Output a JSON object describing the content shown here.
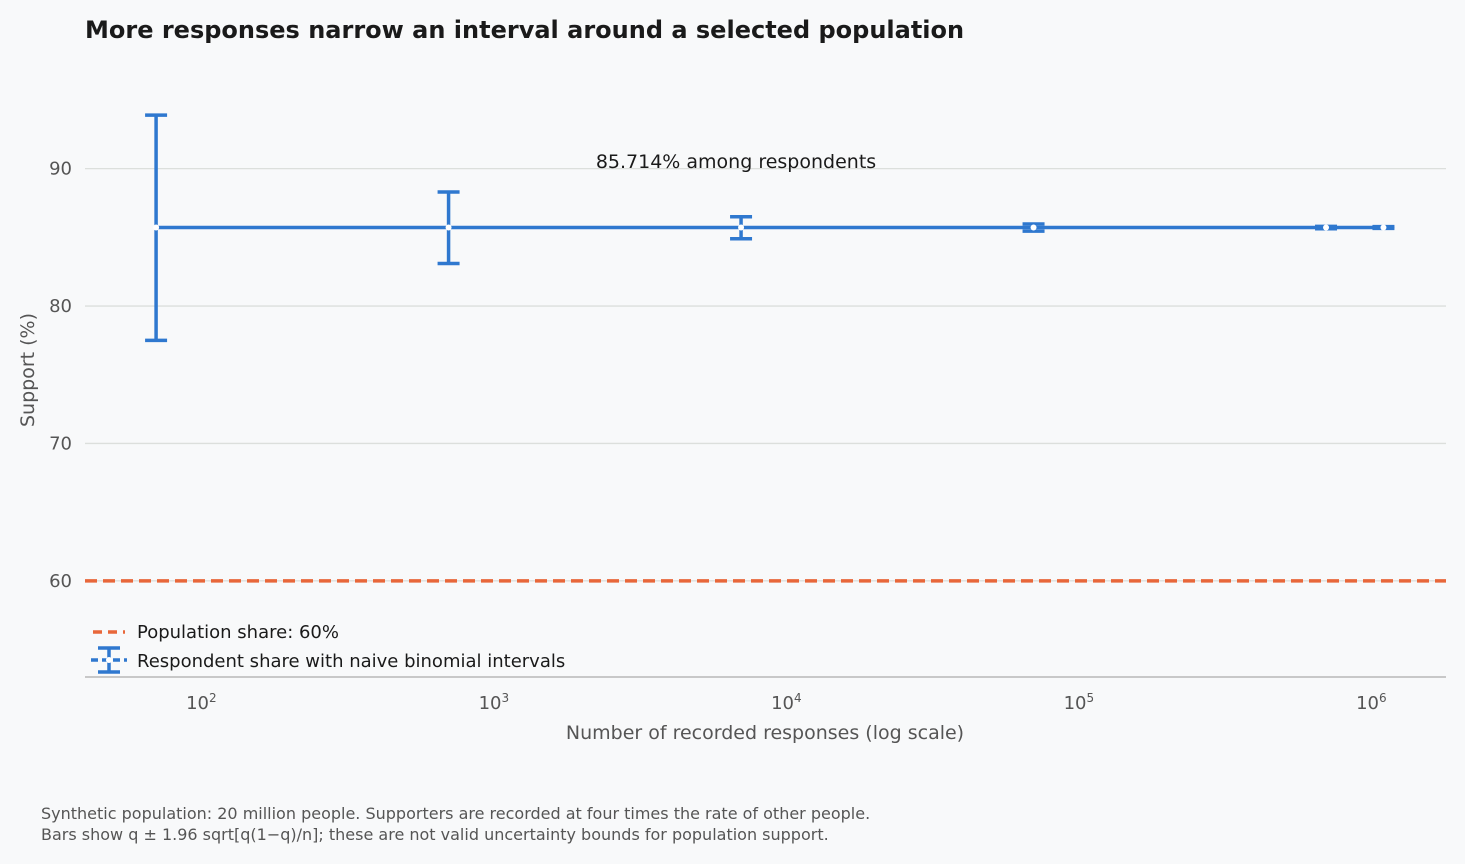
{
  "chart_data": {
    "type": "scatter",
    "title": "More responses narrow an interval around a selected population",
    "xlabel": "Number of recorded responses (log scale)",
    "ylabel": "Support (%)",
    "x_scale": "log",
    "xlim": [
      40,
      1800000
    ],
    "ylim": [
      53,
      99
    ],
    "x_ticks": [
      100,
      1000,
      10000,
      100000,
      1000000
    ],
    "y_ticks": [
      60,
      70,
      80,
      90
    ],
    "grid": "horizontal",
    "legend_position": "lower-left",
    "reference_line": {
      "name": "Population share: 60%",
      "y": 60,
      "color": "#e8673a",
      "style": "dashed"
    },
    "series": [
      {
        "name": "Respondent share with naive binomial intervals",
        "color": "#2f78cf",
        "x": [
          70,
          700,
          7000,
          70000,
          700000,
          1100000
        ],
        "y": [
          85.714,
          85.714,
          85.714,
          85.714,
          85.714,
          85.714
        ],
        "y_low": [
          77.5,
          83.1,
          84.9,
          85.45,
          85.63,
          85.65
        ],
        "y_high": [
          93.9,
          88.3,
          86.5,
          85.97,
          85.8,
          85.78
        ]
      }
    ],
    "annotation": {
      "text": "85.714% among respondents",
      "x": 7000,
      "y": 90.8
    }
  },
  "caption": {
    "line1": "Synthetic population: 20 million people. Supporters are recorded at four times the rate of other people.",
    "line2": "Bars show q ± 1.96 sqrt[q(1−q)/n]; these are not valid uncertainty bounds for population support."
  }
}
